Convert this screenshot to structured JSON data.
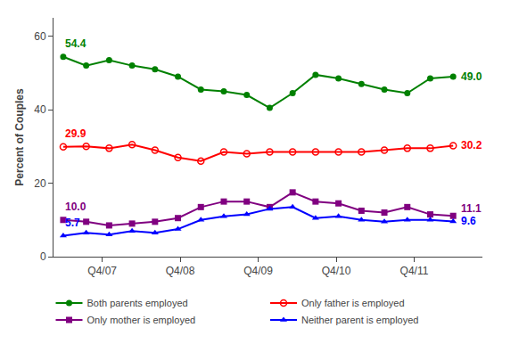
{
  "chart_data": {
    "type": "line",
    "ylabel": "Percent of Couples",
    "x": [
      0,
      1.1764705882352942,
      2.3529411764705883,
      3.5294117647058822,
      4.705882352941177,
      5.882352941176471,
      7.0588235294117645,
      8.235294117647058,
      9.411764705882353,
      10.588235294117647,
      11.764705882352942,
      12.941176470588236,
      14.117647058823529,
      15.294117647058824,
      16.470588235294116,
      17.647058823529413,
      18.823529411764707,
      20
    ],
    "xlim": [
      -0.5,
      21.5
    ],
    "xticks": [
      {
        "value": 2,
        "label": "Q4/07"
      },
      {
        "value": 6,
        "label": "Q4/08"
      },
      {
        "value": 10,
        "label": "Q4/09"
      },
      {
        "value": 14,
        "label": "Q4/10"
      },
      {
        "value": 18,
        "label": "Q4/11"
      }
    ],
    "ylim": [
      0,
      65
    ],
    "yticks": [
      0,
      20,
      40,
      60
    ],
    "grid": false,
    "legend": "bottom",
    "data_labels": true,
    "series": [
      {
        "name": "Both parents employed",
        "color": "#008000",
        "marker": "circle",
        "values": [
          54.4,
          52.0,
          53.5,
          52.0,
          51.0,
          49.0,
          45.5,
          45.0,
          44.0,
          40.5,
          44.5,
          49.5,
          48.5,
          47.0,
          45.5,
          44.5,
          48.5,
          49.0
        ],
        "value_labels": [
          "54.4",
          null,
          null,
          null,
          null,
          null,
          null,
          null,
          null,
          null,
          null,
          null,
          null,
          null,
          null,
          null,
          null,
          "49.0"
        ]
      },
      {
        "name": "Only father is employed",
        "color": "#ff0000",
        "marker": "circle-open",
        "values": [
          29.9,
          30.0,
          29.5,
          30.5,
          29.0,
          27.0,
          26.0,
          28.5,
          28.0,
          28.5,
          28.5,
          28.5,
          28.5,
          28.5,
          29.0,
          29.5,
          29.5,
          30.2
        ],
        "value_labels": [
          "29.9",
          null,
          null,
          null,
          null,
          null,
          null,
          null,
          null,
          null,
          null,
          null,
          null,
          null,
          null,
          null,
          null,
          "30.2"
        ]
      },
      {
        "name": "Only mother is employed",
        "color": "#800080",
        "marker": "square",
        "values": [
          10.0,
          9.5,
          8.5,
          9.0,
          9.5,
          10.5,
          13.5,
          15.0,
          15.0,
          13.5,
          17.5,
          15.0,
          14.5,
          12.5,
          12.0,
          13.5,
          11.5,
          11.1
        ],
        "value_labels": [
          "10.0",
          null,
          null,
          null,
          null,
          null,
          null,
          null,
          null,
          null,
          null,
          null,
          null,
          null,
          null,
          null,
          null,
          "11.1"
        ]
      },
      {
        "name": "Neither parent is employed",
        "color": "#0000ff",
        "marker": "triangle-up",
        "values": [
          5.7,
          6.5,
          6.0,
          7.0,
          6.5,
          7.5,
          10.0,
          11.0,
          11.5,
          13.0,
          13.5,
          10.5,
          11.0,
          10.0,
          9.5,
          10.0,
          10.0,
          9.6
        ],
        "value_labels": [
          "5.7",
          null,
          null,
          null,
          null,
          null,
          null,
          null,
          null,
          null,
          null,
          null,
          null,
          null,
          null,
          null,
          null,
          "9.6"
        ]
      }
    ]
  }
}
